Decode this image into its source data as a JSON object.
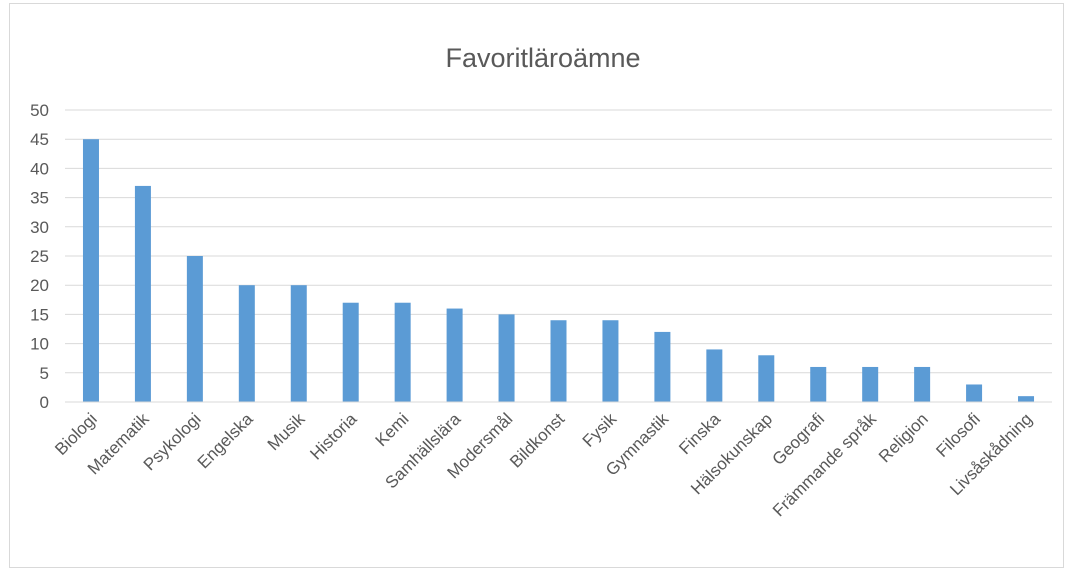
{
  "chart_data": {
    "type": "bar",
    "title": "Favoritläroämne",
    "xlabel": "",
    "ylabel": "",
    "categories": [
      "Biologi",
      "Matematik",
      "Psykologi",
      "Engelska",
      "Musik",
      "Historia",
      "Kemi",
      "Samhällslära",
      "Modersmål",
      "Bildkonst",
      "Fysik",
      "Gymnastik",
      "Finska",
      "Hälsokunskap",
      "Geografi",
      "Främmande språk",
      "Religion",
      "Filosofi",
      "Livsåskådning"
    ],
    "values": [
      45,
      37,
      25,
      20,
      20,
      17,
      17,
      16,
      15,
      14,
      14,
      12,
      9,
      8,
      6,
      6,
      6,
      3,
      1
    ],
    "ylim": [
      0,
      50
    ],
    "yticks": [
      0,
      5,
      10,
      15,
      20,
      25,
      30,
      35,
      40,
      45,
      50
    ],
    "grid": true,
    "legend": "none",
    "bar_color": "#5b9bd5",
    "grid_color": "#d9d9d9",
    "text_color": "#595959"
  }
}
